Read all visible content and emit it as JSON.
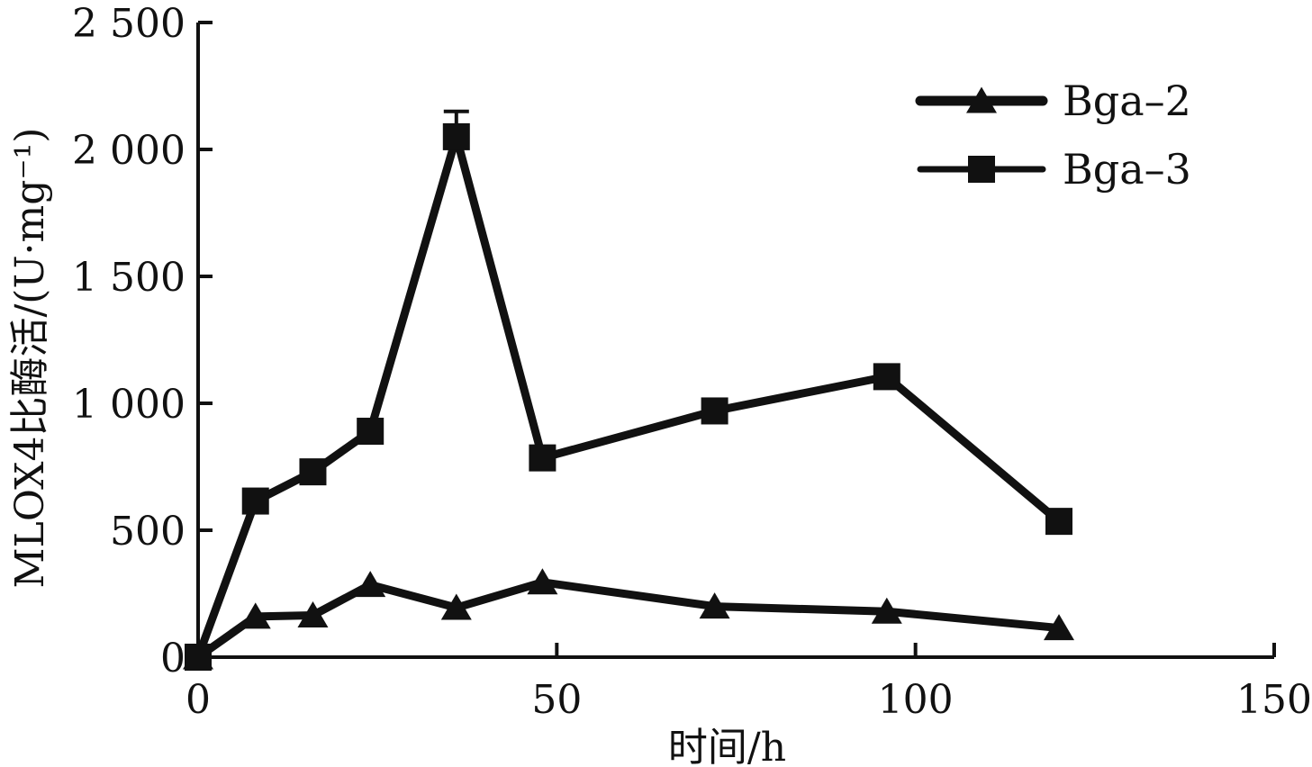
{
  "chart_data": {
    "type": "line",
    "xlabel": "时间/h",
    "ylabel": "MLOX4比酶活/(U·mg⁻¹)",
    "xlim": [
      0,
      150
    ],
    "ylim": [
      0,
      2500
    ],
    "x_ticks": [
      0,
      50,
      100,
      150
    ],
    "x_tick_labels": [
      "0",
      "50",
      "100",
      "150"
    ],
    "y_ticks": [
      0,
      500,
      1000,
      1500,
      2000,
      2500
    ],
    "y_tick_labels": [
      "0",
      "500",
      "1 000",
      "1 500",
      "2 000",
      "2 500"
    ],
    "grid": false,
    "legend_position": "top-right",
    "series": [
      {
        "name": "Bga–2",
        "marker": "triangle",
        "color": "#111111",
        "x": [
          0,
          8,
          16,
          24,
          36,
          48,
          72,
          96,
          120
        ],
        "y": [
          0,
          160,
          165,
          285,
          195,
          295,
          200,
          180,
          115
        ]
      },
      {
        "name": "Bga–3",
        "marker": "square",
        "color": "#111111",
        "x": [
          0,
          8,
          16,
          24,
          36,
          48,
          72,
          96,
          120
        ],
        "y": [
          0,
          615,
          730,
          890,
          2050,
          785,
          970,
          1105,
          535
        ],
        "error_bars": [
          {
            "x": 36,
            "err": 100
          }
        ]
      }
    ]
  }
}
